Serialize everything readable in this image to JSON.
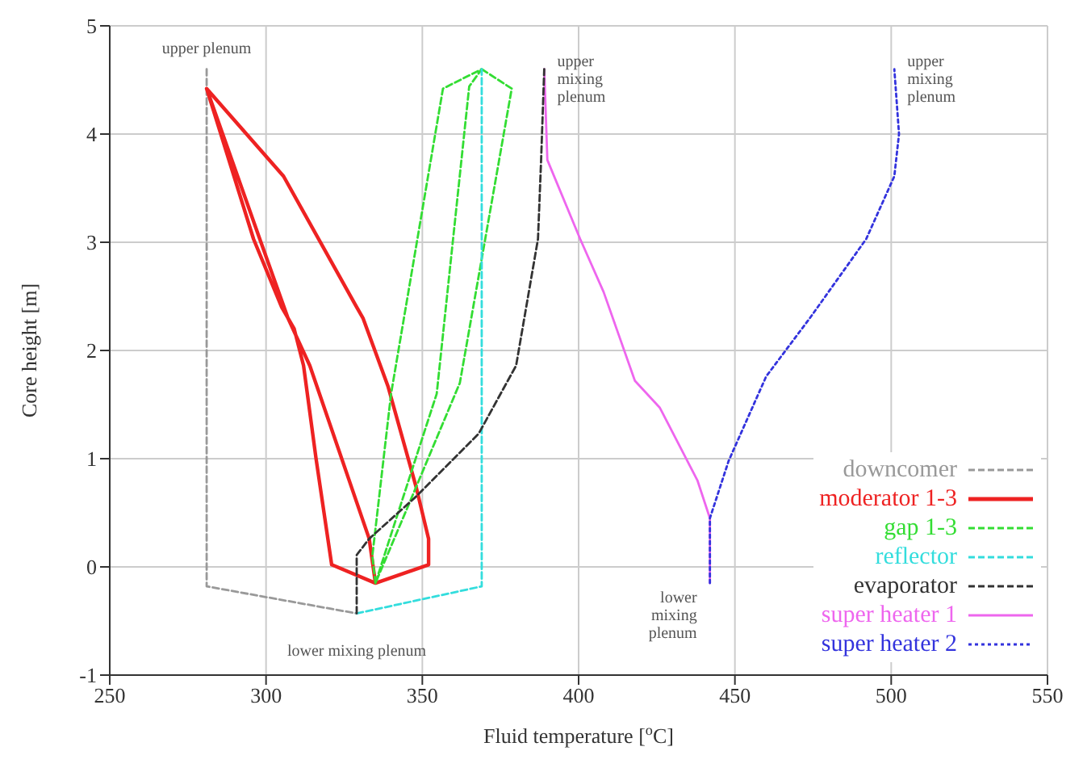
{
  "chart_data": {
    "type": "line",
    "xlabel": "Fluid temperature [$^{o}$C]",
    "ylabel": "Core height [m]",
    "xlim": [
      250,
      550
    ],
    "xticks": [
      250,
      300,
      350,
      400,
      450,
      500,
      550
    ],
    "ylim": [
      -1,
      5
    ],
    "yticks": [
      -1,
      0,
      1,
      2,
      3,
      4,
      5
    ],
    "grid": true,
    "legend": "bottom right",
    "marker": "none",
    "series": [
      {
        "name": "downcomer",
        "color": "#999999",
        "line_style": "dashed",
        "x": [
          281,
          281,
          329
        ],
        "values": [
          4.6,
          -0.18,
          -0.43
        ]
      },
      {
        "name": "moderator 1-3",
        "color": "#ee2222",
        "line_style": "solid",
        "x": [
          281,
          305.6,
          329,
          331,
          339,
          348,
          352,
          352,
          335,
          321,
          316,
          312,
          309,
          305,
          296,
          281,
          298,
          307,
          314,
          333,
          335
        ],
        "values": [
          4.42,
          3.61,
          2.4,
          2.3,
          1.67,
          0.74,
          0.26,
          0.02,
          -0.15,
          0.02,
          1.0,
          1.86,
          2.2,
          2.4,
          3.03,
          4.42,
          3.03,
          2.3,
          1.86,
          0.26,
          -0.15
        ]
      },
      {
        "name": "gap 1-3",
        "color": "#33dd33",
        "line_style": "dashed",
        "x": [
          335,
          334,
          340,
          356.6,
          369,
          365,
          354.6,
          340,
          335,
          346,
          362,
          378.6,
          369
        ],
        "values": [
          -0.15,
          0.1,
          1.6,
          4.42,
          4.6,
          4.44,
          1.6,
          0.3,
          -0.15,
          0.6,
          1.7,
          4.42,
          4.6
        ]
      },
      {
        "name": "reflector",
        "color": "#33dddd",
        "line_style": "dashed",
        "x": [
          329,
          369,
          369
        ],
        "values": [
          -0.43,
          -0.18,
          4.6
        ]
      },
      {
        "name": "evaporator",
        "color": "#333333",
        "line_style": "dashed",
        "x": [
          329,
          329,
          333,
          348,
          368,
          380,
          387,
          388,
          389
        ],
        "values": [
          -0.43,
          0.11,
          0.26,
          0.65,
          1.23,
          1.86,
          3.03,
          3.76,
          4.6
        ]
      },
      {
        "name": "super heater 1",
        "color": "#ee66ee",
        "line_style": "solid",
        "x": [
          389,
          390,
          400.5,
          408,
          418,
          426,
          438,
          442,
          442
        ],
        "values": [
          4.6,
          3.76,
          3.03,
          2.54,
          1.72,
          1.47,
          0.8,
          0.45,
          -0.15
        ]
      },
      {
        "name": "super heater 2",
        "color": "#3333dd",
        "line_style": "dotted",
        "x": [
          442,
          442,
          448,
          460,
          474,
          492,
          501,
          502.5,
          501
        ],
        "values": [
          -0.15,
          0.45,
          0.98,
          1.76,
          2.3,
          3.03,
          3.61,
          4.0,
          4.6
        ]
      }
    ],
    "annotations": [
      {
        "text": "upper plenum",
        "x": 281,
        "y": 4.6
      },
      {
        "text": "upper\nmixing\nplenum",
        "x": 389,
        "y": 4.6
      },
      {
        "text": "upper\nmixing\nplenum",
        "x": 501,
        "y": 4.6
      },
      {
        "text": "lower mixing plenum",
        "x": 329,
        "y": -0.43
      },
      {
        "text": "lower\nmixing\nplenum",
        "x": 442,
        "y": -0.15
      }
    ]
  }
}
